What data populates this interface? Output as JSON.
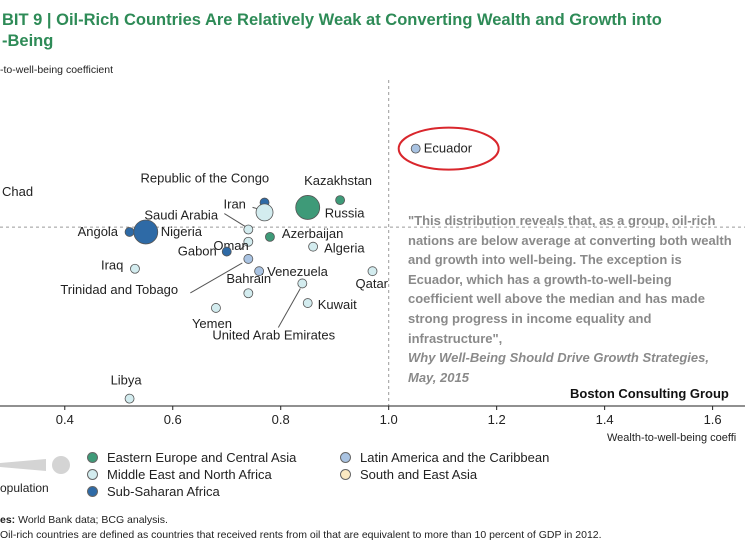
{
  "title_line1": "BIT 9 | Oil-Rich Countries Are Relatively Weak at Converting Wealth and Growth into",
  "title_line2": "-Being",
  "quote": {
    "line1": "\"This distribution reveals that, as a group, oil-rich",
    "line2": "nations are below average at converting both wealth",
    "line3": "and growth into well-being. The exception is",
    "line4": "Ecuador, which has a growth-to-well-being",
    "line5": "coefficient well above the median and has made",
    "line6": "strong progress in income equality and",
    "line7": "infrastructure\",",
    "source": "Why Well-Being Should Drive Growth Strategies,",
    "date": "May, 2015"
  },
  "bcg_label": "Boston Consulting Group",
  "legend": {
    "population_label": "opulation",
    "groups": [
      {
        "name": "Eastern Europe and Central Asia",
        "color": "#3e9a78"
      },
      {
        "name": "Middle East and North Africa",
        "color": "#d3ecef"
      },
      {
        "name": "Sub-Saharan Africa",
        "color": "#2e6aa6"
      },
      {
        "name": "Latin America and the Caribbean",
        "color": "#a9c3e2"
      },
      {
        "name": "South and East Asia",
        "color": "#fbe9c2"
      }
    ]
  },
  "notes": {
    "sources_bold": "es:",
    "sources": " World Bank data; BCG analysis.",
    "note": "Oil-rich countries are defined as countries that received rents from oil that are equivalent to more than 10 percent of GDP in 2012."
  },
  "chart_data": {
    "type": "scatter",
    "title": "Oil-Rich Countries Are Relatively Weak at Converting Wealth and Growth into Well-Being",
    "xlabel": "Wealth-to-well-being coeffi",
    "ylabel": "-to-well-being coefficient",
    "xlim": [
      0.28,
      1.66
    ],
    "ylim": [
      -0.02,
      1.31
    ],
    "x_ticks": [
      0.4,
      0.6,
      0.8,
      1.0,
      1.2,
      1.4,
      1.6
    ],
    "x_tick_labels": [
      "0.4",
      "0.6",
      "0.8",
      "1.0",
      "1.2",
      "1.4",
      "1.6"
    ],
    "reference_lines": {
      "x": 1.0,
      "y": 0.71
    },
    "highlight": "Ecuador",
    "points": [
      {
        "name": "Ecuador",
        "x": 1.05,
        "y": 1.03,
        "group": "Latin America and the Caribbean",
        "size": 1
      },
      {
        "name": "Kazakhstan",
        "x": 0.91,
        "y": 0.82,
        "group": "Eastern Europe and Central Asia",
        "size": 1
      },
      {
        "name": "Russia",
        "x": 0.85,
        "y": 0.79,
        "group": "Eastern Europe and Central Asia",
        "size": 3
      },
      {
        "name": "Republic of the Congo",
        "x": 0.77,
        "y": 0.81,
        "group": "Sub-Saharan Africa",
        "size": 1
      },
      {
        "name": "Iran",
        "x": 0.77,
        "y": 0.77,
        "group": "Middle East and North Africa",
        "size": 2
      },
      {
        "name": "Saudi Arabia",
        "x": 0.74,
        "y": 0.7,
        "group": "Middle East and North Africa",
        "size": 1
      },
      {
        "name": "Angola",
        "x": 0.52,
        "y": 0.69,
        "group": "Sub-Saharan Africa",
        "size": 1
      },
      {
        "name": "Nigeria",
        "x": 0.55,
        "y": 0.69,
        "group": "Sub-Saharan Africa",
        "size": 3
      },
      {
        "name": "Azerbaijan",
        "x": 0.78,
        "y": 0.67,
        "group": "Eastern Europe and Central Asia",
        "size": 1
      },
      {
        "name": "Oman",
        "x": 0.74,
        "y": 0.65,
        "group": "Middle East and North Africa",
        "size": 1
      },
      {
        "name": "Algeria",
        "x": 0.86,
        "y": 0.63,
        "group": "Middle East and North Africa",
        "size": 1
      },
      {
        "name": "Gabon",
        "x": 0.7,
        "y": 0.61,
        "group": "Sub-Saharan Africa",
        "size": 1
      },
      {
        "name": "Trinidad and Tobago",
        "x": 0.74,
        "y": 0.58,
        "group": "Latin America and the Caribbean",
        "size": 1
      },
      {
        "name": "Iraq",
        "x": 0.53,
        "y": 0.54,
        "group": "Middle East and North Africa",
        "size": 1
      },
      {
        "name": "Venezuela",
        "x": 0.76,
        "y": 0.53,
        "group": "Latin America and the Caribbean",
        "size": 1
      },
      {
        "name": "Qatar",
        "x": 0.97,
        "y": 0.53,
        "group": "Middle East and North Africa",
        "size": 1
      },
      {
        "name": "Bahrain",
        "x": 0.74,
        "y": 0.44,
        "group": "Middle East and North Africa",
        "size": 1
      },
      {
        "name": "United Arab Emirates",
        "x": 0.84,
        "y": 0.48,
        "group": "Middle East and North Africa",
        "size": 1
      },
      {
        "name": "Kuwait",
        "x": 0.85,
        "y": 0.4,
        "group": "Middle East and North Africa",
        "size": 1
      },
      {
        "name": "Yemen",
        "x": 0.68,
        "y": 0.38,
        "group": "Middle East and North Africa",
        "size": 1
      },
      {
        "name": "Libya",
        "x": 0.52,
        "y": 0.01,
        "group": "Middle East and North Africa",
        "size": 1
      }
    ],
    "offchart_labels": [
      "Chad"
    ]
  }
}
